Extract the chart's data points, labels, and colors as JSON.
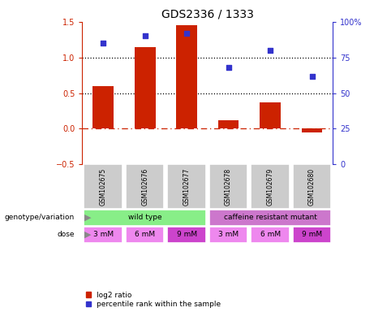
{
  "title": "GDS2336 / 1333",
  "samples": [
    "GSM102675",
    "GSM102676",
    "GSM102677",
    "GSM102678",
    "GSM102679",
    "GSM102680"
  ],
  "log2_ratio": [
    0.6,
    1.15,
    1.45,
    0.12,
    0.37,
    -0.05
  ],
  "percentile_rank": [
    85,
    90,
    92,
    68,
    80,
    62
  ],
  "bar_color": "#cc2200",
  "dot_color": "#3333cc",
  "ylim_left": [
    -0.5,
    1.5
  ],
  "ylim_right": [
    0,
    100
  ],
  "yticks_left": [
    -0.5,
    0.0,
    0.5,
    1.0,
    1.5
  ],
  "yticks_right": [
    0,
    25,
    50,
    75,
    100
  ],
  "hlines": [
    0.5,
    1.0
  ],
  "hline_zero_color": "#cc2200",
  "hline_dotted_color": "#000000",
  "genotype_groups": [
    {
      "label": "wild type",
      "cols": [
        0,
        1,
        2
      ],
      "color": "#88ee88"
    },
    {
      "label": "caffeine resistant mutant",
      "cols": [
        3,
        4,
        5
      ],
      "color": "#cc77cc"
    }
  ],
  "dose_labels": [
    "3 mM",
    "6 mM",
    "9 mM",
    "3 mM",
    "6 mM",
    "9 mM"
  ],
  "dose_colors": [
    "#ee88ee",
    "#ee88ee",
    "#cc44cc",
    "#ee88ee",
    "#ee88ee",
    "#cc44cc"
  ],
  "sample_bg": "#cccccc",
  "genotype_label": "genotype/variation",
  "dose_label": "dose",
  "legend_bar_label": "log2 ratio",
  "legend_dot_label": "percentile rank within the sample",
  "bar_width": 0.5,
  "figsize": [
    4.61,
    3.84
  ],
  "dpi": 100
}
